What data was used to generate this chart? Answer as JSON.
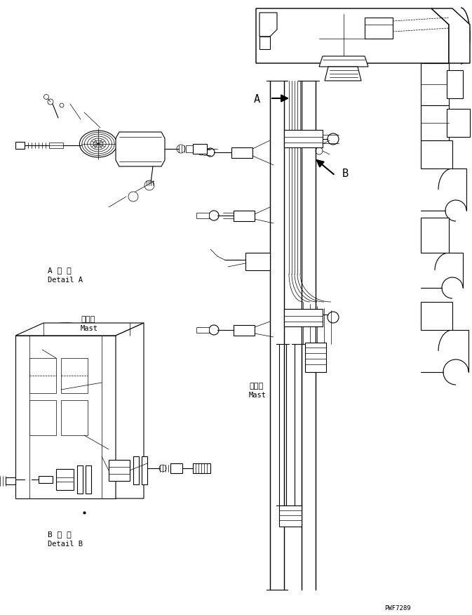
{
  "bg_color": "#ffffff",
  "line_color": "#000000",
  "fig_width": 6.73,
  "fig_height": 8.76,
  "dpi": 100,
  "part_number": "PWF7289",
  "label_A_jp": "A 詳 細",
  "label_A_en": "Detail A",
  "label_B_jp": "B 詳 細",
  "label_B_en": "Detail B",
  "mast_jp": "マスト",
  "mast_en": "Mast",
  "label_A": "A",
  "label_B": "B"
}
